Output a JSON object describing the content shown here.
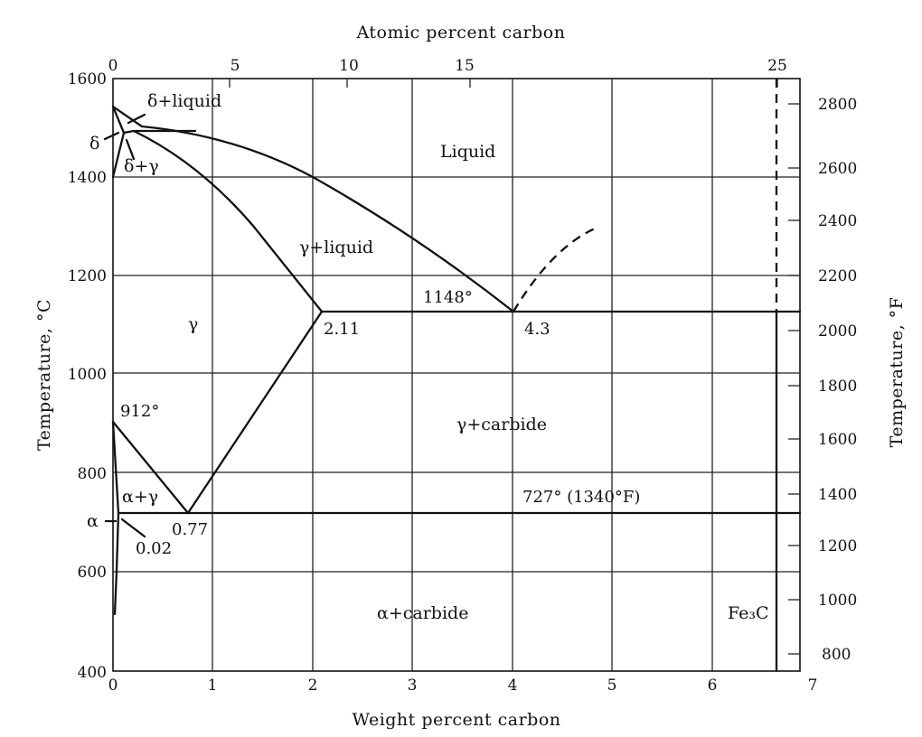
{
  "axes": {
    "bottom": {
      "title": "Weight percent carbon",
      "ticks": [
        "0",
        "1",
        "2",
        "3",
        "4",
        "5",
        "6",
        "7"
      ],
      "range": [
        0,
        7
      ]
    },
    "top": {
      "title": "Atomic percent carbon",
      "ticks": [
        {
          "label": "0",
          "wt": 0
        },
        {
          "label": "5",
          "wt": 1.16
        },
        {
          "label": "10",
          "wt": 2.33
        },
        {
          "label": "15",
          "wt": 3.57
        },
        {
          "label": "25",
          "wt": 6.67
        }
      ]
    },
    "left": {
      "title": "Temperature, °C",
      "ticks": [
        "400",
        "600",
        "800",
        "1000",
        "1200",
        "1400",
        "1600"
      ],
      "range": [
        400,
        1600
      ]
    },
    "right": {
      "title": "Temperature, °F",
      "ticks": [
        "800",
        "1000",
        "1200",
        "1400",
        "1600",
        "1800",
        "2000",
        "2200",
        "2400",
        "2600",
        "2800"
      ]
    }
  },
  "regions": {
    "liquid": "Liquid",
    "gamma_liquid": "γ+liquid",
    "gamma": "γ",
    "gamma_carbide": "γ+carbide",
    "alpha_carbide": "α+carbide",
    "alpha_gamma": "α+γ",
    "delta_liquid": "δ+liquid",
    "delta_gamma": "δ+γ",
    "delta": "δ",
    "alpha": "α",
    "fe3c": "Fe₃C"
  },
  "annotations": {
    "eutectic_temp": "1148°",
    "eutectic_comp": "4.3",
    "max_solubility": "2.11",
    "gamma_alpha_temp": "912°",
    "eutectoid_temp": "727° (1340°F)",
    "eutectoid_comp": "0.77",
    "alpha_max": "0.02"
  },
  "key_points": {
    "eutectic": {
      "wt": 4.3,
      "T": 1148
    },
    "gamma_max_solubility": {
      "wt": 2.11,
      "T": 1148
    },
    "eutectoid": {
      "wt": 0.77,
      "T": 727
    },
    "alpha_max_solubility": {
      "wt": 0.02,
      "T": 727
    },
    "alpha_gamma_pure_fe": {
      "wt": 0,
      "T": 912
    },
    "cementite": {
      "wt": 6.67
    }
  }
}
